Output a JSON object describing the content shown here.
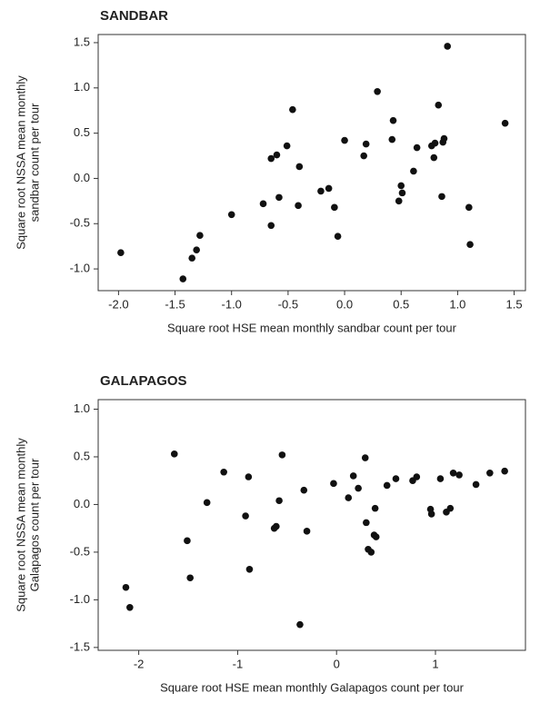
{
  "chart_data": [
    {
      "type": "scatter",
      "title": "SANDBAR",
      "xlabel": "Square root HSE mean monthly sandbar count per tour",
      "ylabel": [
        "Square root NSSA mean monthly",
        "sandbar count per tour"
      ],
      "xlim": [
        -2.18,
        1.6
      ],
      "ylim": [
        -1.24,
        1.59
      ],
      "xticks": [
        {
          "value": -2,
          "label": "-2.0"
        },
        -1.5,
        {
          "value": -1,
          "label": "-1.0"
        },
        -0.5,
        {
          "value": 0,
          "label": "0.0"
        },
        0.5,
        {
          "value": 1,
          "label": "1.0"
        },
        1.5
      ],
      "yticks": [
        {
          "value": -1,
          "label": "-1.0"
        },
        -0.5,
        {
          "value": 0,
          "label": "0.0"
        },
        0.5,
        {
          "value": 1,
          "label": "1.0"
        },
        1.5
      ],
      "series": [
        {
          "color": "#111111",
          "x": [
            -1.98,
            -1.43,
            -1.35,
            -1.31,
            -1.28,
            -1.0,
            -0.72,
            -0.65,
            -0.65,
            -0.6,
            -0.58,
            -0.51,
            -0.46,
            -0.4,
            -0.41,
            -0.21,
            -0.14,
            -0.09,
            -0.06,
            0.0,
            0.17,
            0.19,
            0.29,
            0.42,
            0.43,
            0.48,
            0.5,
            0.51,
            0.61,
            0.64,
            0.77,
            0.79,
            0.8,
            0.83,
            0.87,
            0.86,
            0.88,
            0.91,
            1.1,
            1.11,
            1.42
          ],
          "y": [
            -0.82,
            -1.11,
            -0.88,
            -0.79,
            -0.63,
            -0.4,
            -0.28,
            -0.52,
            0.22,
            0.26,
            -0.21,
            0.36,
            0.76,
            0.13,
            -0.3,
            -0.14,
            -0.11,
            -0.32,
            -0.64,
            0.42,
            0.25,
            0.38,
            0.96,
            0.43,
            0.64,
            -0.25,
            -0.08,
            -0.16,
            0.08,
            0.34,
            0.36,
            0.23,
            0.39,
            0.81,
            0.4,
            -0.2,
            0.44,
            1.46,
            -0.32,
            -0.73,
            0.61
          ]
        }
      ]
    },
    {
      "type": "scatter",
      "title": "GALAPAGOS",
      "xlabel": "Square root HSE mean monthly Galapagos count per tour",
      "ylabel": [
        "Square root NSSA mean monthly",
        "Galapagos count per tour"
      ],
      "xlim": [
        -2.41,
        1.91
      ],
      "ylim": [
        -1.53,
        1.1
      ],
      "xticks": [
        -2,
        -1,
        0,
        1
      ],
      "yticks": [
        {
          "value": -1.5,
          "label": "-1.5"
        },
        {
          "value": -1,
          "label": "-1.0"
        },
        -0.5,
        {
          "value": 0,
          "label": "0.0"
        },
        0.5,
        {
          "value": 1,
          "label": "1.0"
        }
      ],
      "series": [
        {
          "color": "#111111",
          "x": [
            -2.13,
            -2.09,
            -1.64,
            -1.51,
            -1.48,
            -1.31,
            -1.14,
            -0.92,
            -0.89,
            -0.88,
            -0.63,
            -0.61,
            -0.58,
            -0.55,
            -0.37,
            -0.33,
            -0.3,
            -0.03,
            0.12,
            0.17,
            0.22,
            0.29,
            0.3,
            0.32,
            0.35,
            0.38,
            0.4,
            0.39,
            0.51,
            0.6,
            0.77,
            0.81,
            0.95,
            0.96,
            1.05,
            1.11,
            1.15,
            1.18,
            1.24,
            1.41,
            1.55,
            1.7
          ],
          "y": [
            -0.87,
            -1.08,
            0.53,
            -0.38,
            -0.77,
            0.02,
            0.34,
            -0.12,
            0.29,
            -0.68,
            -0.25,
            -0.23,
            0.04,
            0.52,
            -1.26,
            0.15,
            -0.28,
            0.22,
            0.07,
            0.3,
            0.17,
            0.49,
            -0.19,
            -0.47,
            -0.5,
            -0.32,
            -0.34,
            -0.04,
            0.2,
            0.27,
            0.25,
            0.29,
            -0.05,
            -0.1,
            0.27,
            -0.08,
            -0.04,
            0.33,
            0.31,
            0.21,
            0.33,
            0.35
          ]
        }
      ]
    }
  ]
}
